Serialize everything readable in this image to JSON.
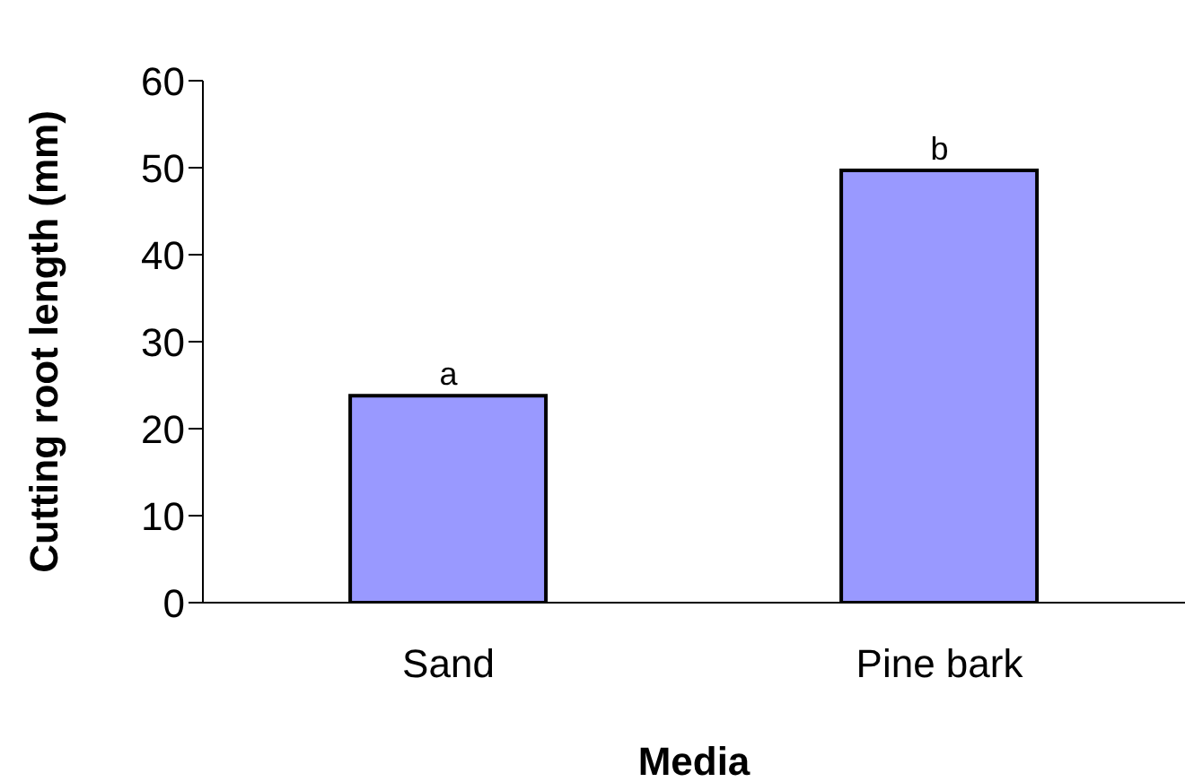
{
  "chart_data": {
    "type": "bar",
    "xlabel": "Media",
    "ylabel": "Cutting root length (mm)",
    "categories": [
      "Sand",
      "Pine bark"
    ],
    "values": [
      23.8,
      49.7
    ],
    "color": "#9999ff",
    "ylim": [
      0,
      60
    ],
    "yticks": [
      0,
      10,
      20,
      30,
      40,
      50,
      60
    ],
    "grid": false,
    "annotations": [
      {
        "text": "a",
        "x": "Sand",
        "y": 23.8
      },
      {
        "text": "b",
        "x": "Pine bark",
        "y": 49.7
      }
    ]
  }
}
